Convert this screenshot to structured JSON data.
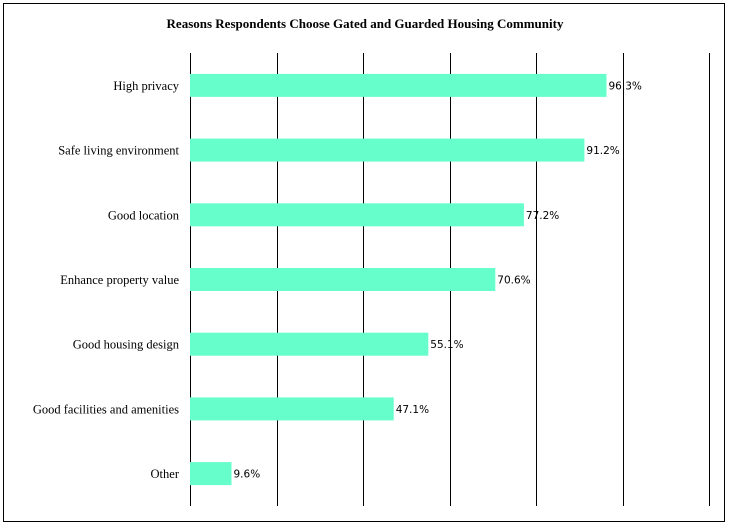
{
  "chart_data": {
    "type": "bar",
    "orientation": "horizontal",
    "title": "Reasons Respondents Choose Gated and Guarded Housing Community",
    "categories": [
      "High privacy",
      "Safe living environment",
      "Good location",
      "Enhance property value",
      "Good housing design",
      "Good facilities and amenities",
      "Other"
    ],
    "values": [
      96.3,
      91.2,
      77.2,
      70.6,
      55.1,
      47.1,
      9.6
    ],
    "data_labels": [
      "96.3%",
      "91.2%",
      "77.2%",
      "70.6%",
      "55.1%",
      "47.1%",
      "9.6%"
    ],
    "xlim": [
      0,
      120
    ],
    "xlabel": "",
    "ylabel": "",
    "grid": "vertical",
    "legend": "none",
    "bar_color": "#66FFCC"
  }
}
